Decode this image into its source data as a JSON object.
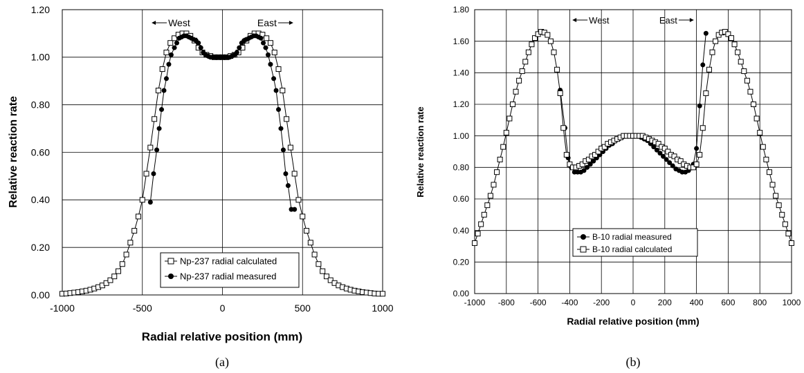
{
  "chart_data": [
    {
      "type": "scatter",
      "caption": "(a)",
      "xlabel": "Radial  relative  position  (mm)",
      "ylabel": "Relative  reaction  rate",
      "xlim": [
        -1000,
        1000
      ],
      "ylim": [
        0,
        1.2
      ],
      "xticks": [
        "-1000",
        "-500",
        "0",
        "500",
        "1000"
      ],
      "yticks": [
        "0.00",
        "0.20",
        "0.40",
        "0.60",
        "0.80",
        "1.00",
        "1.20"
      ],
      "grid": true,
      "legend_position": "bottom-center",
      "annotations": {
        "west": "West",
        "east": "East"
      },
      "series": [
        {
          "name": "Np-237 radial calculated",
          "marker": "open-square",
          "x": [
            -1000,
            -975,
            -950,
            -925,
            -900,
            -875,
            -850,
            -825,
            -800,
            -775,
            -750,
            -725,
            -700,
            -675,
            -650,
            -625,
            -600,
            -575,
            -550,
            -525,
            -500,
            -475,
            -450,
            -425,
            -400,
            -375,
            -350,
            -325,
            -300,
            -275,
            -250,
            -225,
            -200,
            -175,
            -150,
            -125,
            -100,
            -75,
            -50,
            -25,
            0,
            25,
            50,
            75,
            100,
            125,
            150,
            175,
            200,
            225,
            250,
            275,
            300,
            325,
            350,
            375,
            400,
            425,
            450,
            475,
            500,
            525,
            550,
            575,
            600,
            625,
            650,
            675,
            700,
            725,
            750,
            775,
            800,
            825,
            850,
            875,
            900,
            925,
            950,
            975,
            1000
          ],
          "y": [
            0.005,
            0.006,
            0.008,
            0.01,
            0.012,
            0.015,
            0.018,
            0.022,
            0.027,
            0.033,
            0.04,
            0.05,
            0.062,
            0.078,
            0.1,
            0.13,
            0.17,
            0.22,
            0.27,
            0.33,
            0.4,
            0.51,
            0.62,
            0.74,
            0.86,
            0.95,
            1.02,
            1.06,
            1.08,
            1.095,
            1.1,
            1.1,
            1.09,
            1.07,
            1.04,
            1.02,
            1.01,
            1.005,
            1.0,
            1.0,
            1.0,
            1.0,
            1.005,
            1.01,
            1.02,
            1.04,
            1.07,
            1.09,
            1.1,
            1.1,
            1.095,
            1.08,
            1.06,
            1.02,
            0.95,
            0.86,
            0.74,
            0.62,
            0.51,
            0.4,
            0.33,
            0.27,
            0.22,
            0.17,
            0.13,
            0.1,
            0.078,
            0.062,
            0.05,
            0.04,
            0.033,
            0.027,
            0.022,
            0.018,
            0.015,
            0.012,
            0.01,
            0.008,
            0.006,
            0.005,
            0.005
          ]
        },
        {
          "name": "Np-237 radial measured",
          "marker": "filled-circle",
          "x": [
            -450,
            -430,
            -410,
            -395,
            -380,
            -365,
            -350,
            -335,
            -320,
            -300,
            -285,
            -270,
            -255,
            -240,
            -225,
            -210,
            -195,
            -180,
            -165,
            -150,
            -135,
            -120,
            -105,
            -90,
            -75,
            -60,
            -45,
            -30,
            -15,
            0,
            15,
            30,
            45,
            60,
            75,
            90,
            105,
            120,
            135,
            150,
            165,
            180,
            195,
            210,
            225,
            240,
            255,
            270,
            285,
            300,
            320,
            335,
            350,
            365,
            380,
            395,
            410,
            430,
            450
          ],
          "y": [
            0.39,
            0.51,
            0.61,
            0.7,
            0.78,
            0.86,
            0.91,
            0.97,
            1.01,
            1.04,
            1.06,
            1.08,
            1.085,
            1.09,
            1.09,
            1.085,
            1.08,
            1.075,
            1.07,
            1.06,
            1.04,
            1.02,
            1.01,
            1.005,
            1.0,
            1.0,
            1.0,
            1.0,
            1.0,
            1.0,
            1.0,
            1.0,
            1.0,
            1.005,
            1.01,
            1.02,
            1.04,
            1.06,
            1.07,
            1.075,
            1.08,
            1.085,
            1.09,
            1.09,
            1.085,
            1.08,
            1.06,
            1.04,
            1.01,
            0.97,
            0.91,
            0.86,
            0.78,
            0.7,
            0.61,
            0.51,
            0.46,
            0.36,
            0.36
          ]
        }
      ]
    },
    {
      "type": "scatter",
      "caption": "(b)",
      "xlabel": "Radial  relative  position  (mm)",
      "ylabel": "Relative  reaction  rate",
      "xlim": [
        -1000,
        1000
      ],
      "ylim": [
        0,
        1.8
      ],
      "xticks": [
        "-1000",
        "-800",
        "-600",
        "-400",
        "-200",
        "0",
        "200",
        "400",
        "600",
        "800",
        "1000"
      ],
      "yticks": [
        "0.00",
        "0.20",
        "0.40",
        "0.60",
        "0.80",
        "1.00",
        "1.20",
        "1.40",
        "1.60",
        "1.80"
      ],
      "grid": true,
      "legend_position": "bottom-center",
      "annotations": {
        "west": "West",
        "east": "East"
      },
      "series": [
        {
          "name": "B-10 radial measured",
          "marker": "filled-circle",
          "x": [
            -460,
            -430,
            -410,
            -390,
            -370,
            -350,
            -330,
            -310,
            -290,
            -270,
            -250,
            -230,
            -210,
            -190,
            -170,
            -150,
            -130,
            -110,
            -90,
            -70,
            -50,
            -30,
            -10,
            10,
            30,
            50,
            70,
            90,
            110,
            130,
            150,
            170,
            190,
            210,
            230,
            250,
            270,
            290,
            310,
            330,
            350,
            380,
            400,
            420,
            440,
            460
          ],
          "y": [
            1.29,
            1.05,
            0.86,
            0.8,
            0.77,
            0.77,
            0.77,
            0.78,
            0.8,
            0.82,
            0.84,
            0.86,
            0.88,
            0.9,
            0.92,
            0.94,
            0.95,
            0.97,
            0.98,
            0.99,
            1.0,
            1.0,
            1.0,
            1.0,
            1.0,
            0.99,
            0.98,
            0.97,
            0.95,
            0.93,
            0.91,
            0.89,
            0.87,
            0.85,
            0.83,
            0.81,
            0.79,
            0.78,
            0.77,
            0.77,
            0.78,
            0.82,
            0.92,
            1.19,
            1.45,
            1.65
          ]
        },
        {
          "name": "B-10 radial calculated",
          "marker": "open-square",
          "x": [
            -1000,
            -980,
            -960,
            -940,
            -920,
            -900,
            -880,
            -860,
            -840,
            -820,
            -800,
            -780,
            -760,
            -740,
            -720,
            -700,
            -680,
            -660,
            -640,
            -620,
            -600,
            -580,
            -560,
            -540,
            -520,
            -500,
            -480,
            -460,
            -440,
            -420,
            -400,
            -380,
            -360,
            -340,
            -320,
            -300,
            -280,
            -260,
            -240,
            -220,
            -200,
            -180,
            -160,
            -140,
            -120,
            -100,
            -80,
            -60,
            -40,
            -20,
            0,
            20,
            40,
            60,
            80,
            100,
            120,
            140,
            160,
            180,
            200,
            220,
            240,
            260,
            280,
            300,
            320,
            340,
            360,
            380,
            400,
            420,
            440,
            460,
            480,
            500,
            520,
            540,
            560,
            580,
            600,
            620,
            640,
            660,
            680,
            700,
            720,
            740,
            760,
            780,
            800,
            820,
            840,
            860,
            880,
            900,
            920,
            940,
            960,
            980,
            1000
          ],
          "y": [
            0.32,
            0.38,
            0.44,
            0.5,
            0.56,
            0.62,
            0.69,
            0.77,
            0.85,
            0.93,
            1.02,
            1.11,
            1.2,
            1.28,
            1.35,
            1.41,
            1.47,
            1.53,
            1.58,
            1.62,
            1.645,
            1.66,
            1.655,
            1.64,
            1.6,
            1.53,
            1.42,
            1.27,
            1.05,
            0.88,
            0.82,
            0.8,
            0.8,
            0.81,
            0.82,
            0.84,
            0.85,
            0.87,
            0.88,
            0.9,
            0.92,
            0.93,
            0.95,
            0.96,
            0.97,
            0.98,
            0.99,
            1.0,
            1.0,
            1.0,
            1.0,
            1.0,
            1.0,
            1.0,
            0.99,
            0.98,
            0.97,
            0.96,
            0.95,
            0.93,
            0.92,
            0.9,
            0.88,
            0.87,
            0.85,
            0.84,
            0.82,
            0.81,
            0.8,
            0.8,
            0.82,
            0.88,
            1.05,
            1.27,
            1.42,
            1.53,
            1.6,
            1.64,
            1.655,
            1.66,
            1.645,
            1.62,
            1.58,
            1.53,
            1.47,
            1.41,
            1.35,
            1.28,
            1.2,
            1.11,
            1.02,
            0.93,
            0.85,
            0.77,
            0.69,
            0.62,
            0.56,
            0.5,
            0.44,
            0.38,
            0.32
          ]
        }
      ]
    }
  ]
}
